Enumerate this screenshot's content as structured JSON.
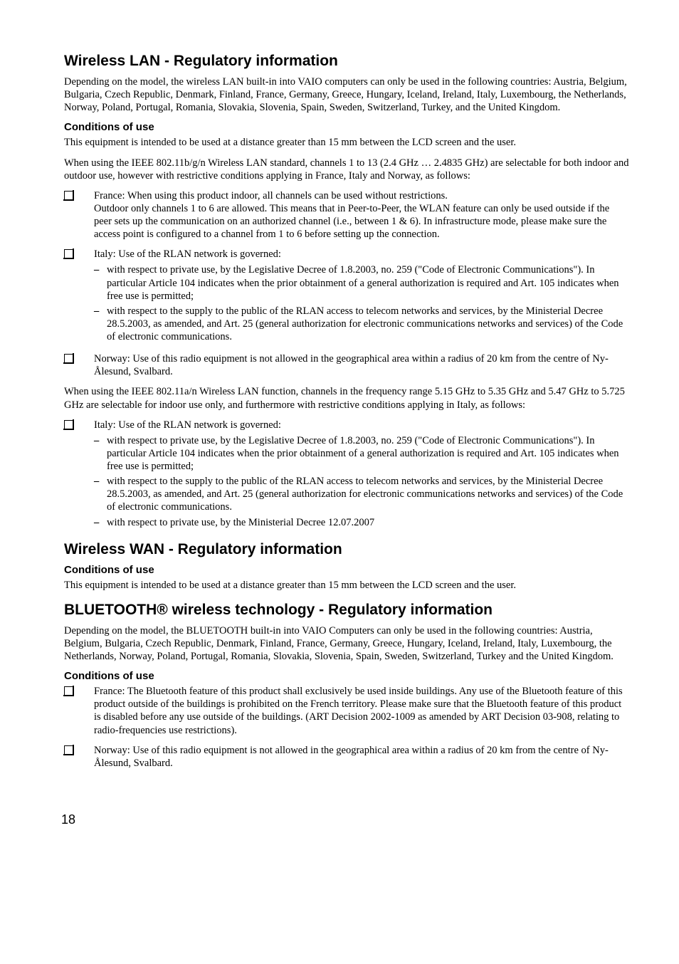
{
  "s1": {
    "heading": "Wireless LAN - Regulatory information",
    "p1": "Depending on the model, the wireless LAN built-in into VAIO computers can only be used in the following countries: Austria, Belgium, Bulgaria, Czech Republic, Denmark, Finland, France, Germany, Greece, Hungary, Iceland, Ireland, Italy, Luxembourg, the Netherlands, Norway, Poland, Portugal, Romania, Slovakia, Slovenia, Spain, Sweden, Switzerland, Turkey, and the United Kingdom.",
    "conditions_heading": "Conditions of use",
    "p2": "This equipment is intended to be used at a distance greater than 15 mm between the LCD screen and the user.",
    "p3": "When using the IEEE 802.11b/g/n Wireless LAN standard, channels 1 to 13 (2.4 GHz … 2.4835 GHz) are selectable for both indoor and outdoor use, however with restrictive conditions applying in France, Italy and Norway, as follows:",
    "list1": {
      "france_line1": "France: When using this product indoor, all channels can be used without restrictions.",
      "france_line2": "Outdoor only channels 1 to 6 are allowed. This means that in Peer-to-Peer, the WLAN feature can only be used outside if the peer sets up the communication on an authorized channel (i.e., between 1 & 6). In infrastructure mode, please make sure the access point is configured to a channel from 1 to 6 before setting up the connection.",
      "italy_intro": "Italy: Use of the RLAN network is governed:",
      "italy_d1": "with respect to private use, by the Legislative Decree of 1.8.2003, no. 259 (\"Code of Electronic Communications\"). In particular Article 104 indicates when the prior obtainment of a general authorization is required and Art. 105 indicates when free use is permitted;",
      "italy_d2": "with respect to the supply to the public of the RLAN access to telecom networks and services, by the Ministerial Decree 28.5.2003, as amended, and Art. 25 (general authorization for electronic communications networks and services) of the Code of electronic communications.",
      "norway": "Norway: Use of this radio equipment is not allowed in the geographical area within a radius of 20 km from the centre of Ny-Ålesund, Svalbard."
    },
    "p4": "When using the IEEE 802.11a/n Wireless LAN function, channels in the frequency range 5.15 GHz to 5.35 GHz and 5.47 GHz to 5.725 GHz are selectable for indoor use only, and furthermore with restrictive conditions applying in Italy, as follows:",
    "list2": {
      "italy_intro": "Italy: Use of the RLAN network is governed:",
      "italy_d1": "with respect to private use, by the Legislative Decree of 1.8.2003, no. 259 (\"Code of Electronic Communications\"). In particular Article 104 indicates when the prior obtainment of a general authorization is required and Art. 105 indicates when free use is permitted;",
      "italy_d2": "with respect to the supply to the public of the RLAN access to telecom networks and services, by the Ministerial Decree 28.5.2003, as amended, and Art. 25 (general authorization for electronic communications networks and services) of the Code of electronic communications.",
      "italy_d3": "with respect to private use, by the Ministerial Decree 12.07.2007"
    }
  },
  "s2": {
    "heading": "Wireless WAN - Regulatory information",
    "conditions_heading": "Conditions of use",
    "p1": "This equipment is intended to be used at a distance greater than 15 mm between the LCD screen and the user."
  },
  "s3": {
    "heading": "BLUETOOTH® wireless technology - Regulatory information",
    "p1": "Depending on the model, the BLUETOOTH built-in into VAIO Computers can only be used in the following countries: Austria, Belgium, Bulgaria, Czech Republic, Denmark, Finland, France, Germany, Greece, Hungary, Iceland, Ireland, Italy, Luxembourg, the Netherlands, Norway, Poland, Portugal, Romania, Slovakia, Slovenia, Spain, Sweden, Switzerland, Turkey and the United Kingdom.",
    "conditions_heading": "Conditions of use",
    "list": {
      "france": "France: The Bluetooth feature of this product shall exclusively be used inside buildings. Any use of the Bluetooth feature of this product outside of the buildings is prohibited on the French territory. Please make sure that the Bluetooth feature of this product is disabled before any use outside of the buildings. (ART Decision 2002-1009 as amended by ART Decision 03-908, relating to radio-frequencies use restrictions).",
      "norway": "Norway: Use of this radio equipment is not allowed in the geographical area within a radius of 20 km from the centre of Ny-Ålesund, Svalbard."
    }
  },
  "page_number": "18"
}
